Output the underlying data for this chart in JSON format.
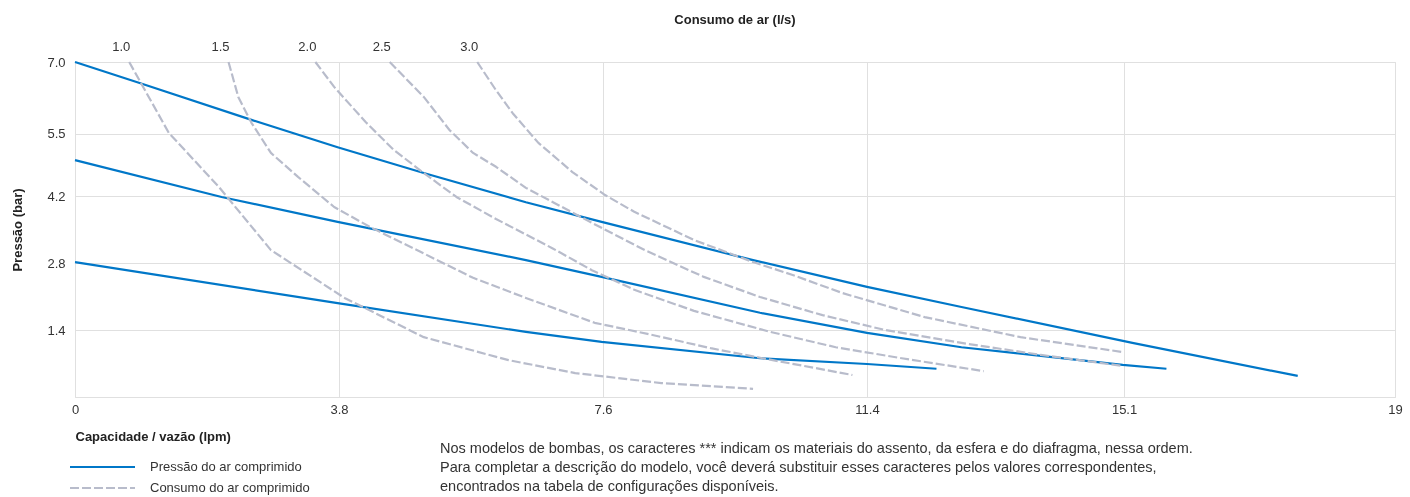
{
  "chart_data": {
    "type": "line",
    "x2label": "Consumo de ar (l/s)",
    "xlabel": "Capacidade / vazão (lpm)",
    "ylabel": "Pressão (bar)",
    "xlim": [
      0,
      19
    ],
    "ylim": [
      0,
      7
    ],
    "xticks": [
      0,
      3.8,
      7.6,
      11.4,
      15.1,
      19
    ],
    "yticks": [
      {
        "value": 7,
        "label": "7.0"
      },
      5.5,
      4.2,
      2.8,
      1.4
    ],
    "grid": true,
    "legend": "bottom left",
    "marker": "none",
    "series": [
      {
        "name": "Pressão do ar comprimido",
        "color": "#0077c8",
        "line_style": "solid",
        "x": [
          0,
          0.93,
          2.54,
          3.78,
          5.02,
          6.49,
          7.58,
          9.76,
          11.4,
          12.76,
          15.22,
          17.6
        ],
        "values": [
          7.0,
          6.56,
          5.79,
          5.22,
          4.68,
          4.07,
          3.66,
          2.86,
          2.3,
          1.88,
          1.13,
          0.44
        ]
      },
      {
        "color": "#0077c8",
        "line_style": "solid",
        "x": [
          0,
          2.11,
          3.78,
          6.49,
          7.58,
          9.86,
          11.4,
          12.76,
          15.08,
          15.71
        ],
        "values": [
          4.95,
          4.18,
          3.66,
          2.86,
          2.51,
          1.76,
          1.34,
          1.04,
          0.67,
          0.59
        ]
      },
      {
        "color": "#0077c8",
        "line_style": "solid",
        "x": [
          0,
          3.78,
          6.49,
          7.58,
          9.86,
          11.4,
          12.4
        ],
        "values": [
          2.82,
          1.96,
          1.36,
          1.15,
          0.81,
          0.69,
          0.59
        ]
      },
      {
        "name": "Consumo do ar comprimido",
        "color": "#b8bccb",
        "line_style": "dashed",
        "x": [
          0.78,
          1.35,
          2.07,
          2.82,
          3.88,
          5.02,
          6.24,
          7.2,
          8.44,
          9.76
        ],
        "values": [
          7.0,
          5.52,
          4.39,
          3.07,
          2.07,
          1.25,
          0.77,
          0.5,
          0.29,
          0.17
        ]
      },
      {
        "color": "#b8bccb",
        "line_style": "dashed",
        "x": [
          2.21,
          2.35,
          2.54,
          2.82,
          3.21,
          3.73,
          4.25,
          5.06,
          5.73,
          6.49,
          7.48,
          8.24,
          9.15,
          9.86,
          11.19
        ],
        "values": [
          7.0,
          6.27,
          5.73,
          5.1,
          4.6,
          3.97,
          3.55,
          2.97,
          2.49,
          2.07,
          1.55,
          1.32,
          1.02,
          0.82,
          0.46
        ]
      },
      {
        "color": "#b8bccb",
        "line_style": "dashed",
        "x": [
          3.46,
          3.73,
          4.18,
          4.59,
          5.02,
          5.49,
          6.06,
          6.87,
          7.44,
          8.05,
          8.91,
          10.01,
          10.95,
          11.9,
          13.08
        ],
        "values": [
          7.0,
          6.48,
          5.75,
          5.16,
          4.68,
          4.18,
          3.72,
          3.11,
          2.65,
          2.24,
          1.8,
          1.36,
          1.04,
          0.81,
          0.54
        ]
      },
      {
        "color": "#b8bccb",
        "line_style": "dashed",
        "x": [
          4.53,
          5.02,
          5.39,
          5.73,
          6.06,
          6.49,
          7.44,
          8.2,
          9.05,
          9.86,
          10.76,
          11.66,
          12.76,
          13.9,
          15.08
        ],
        "values": [
          7.0,
          6.27,
          5.58,
          5.1,
          4.81,
          4.37,
          3.64,
          3.07,
          2.51,
          2.09,
          1.71,
          1.4,
          1.13,
          0.88,
          0.65
        ]
      },
      {
        "color": "#b8bccb",
        "line_style": "dashed",
        "x": [
          5.79,
          6.06,
          6.3,
          6.67,
          7.16,
          7.63,
          8.05,
          8.91,
          9.76,
          10.33,
          11.05,
          12.23,
          13.61,
          15.08
        ],
        "values": [
          7.0,
          6.41,
          5.93,
          5.31,
          4.7,
          4.22,
          3.87,
          3.28,
          2.82,
          2.55,
          2.17,
          1.67,
          1.25,
          0.94
        ]
      }
    ],
    "annotations": [
      {
        "text": "1.0",
        "x": 0.78,
        "y": 7.0
      },
      {
        "text": "1.5",
        "x": 2.21,
        "y": 7.0
      },
      {
        "text": "2.0",
        "x": 3.46,
        "y": 7.0
      },
      {
        "text": "2.5",
        "x": 4.53,
        "y": 7.0
      },
      {
        "text": "3.0",
        "x": 5.79,
        "y": 7.0
      },
      "Nos modelos de bombas, os caracteres *** indicam os materiais do assento, da esfera e do diafragma, nessa ordem. Para completar a descrição do modelo, você deverá substituir esses caracteres pelos valores correspondentes, encontrados na tabela de configurações disponíveis."
    ]
  }
}
